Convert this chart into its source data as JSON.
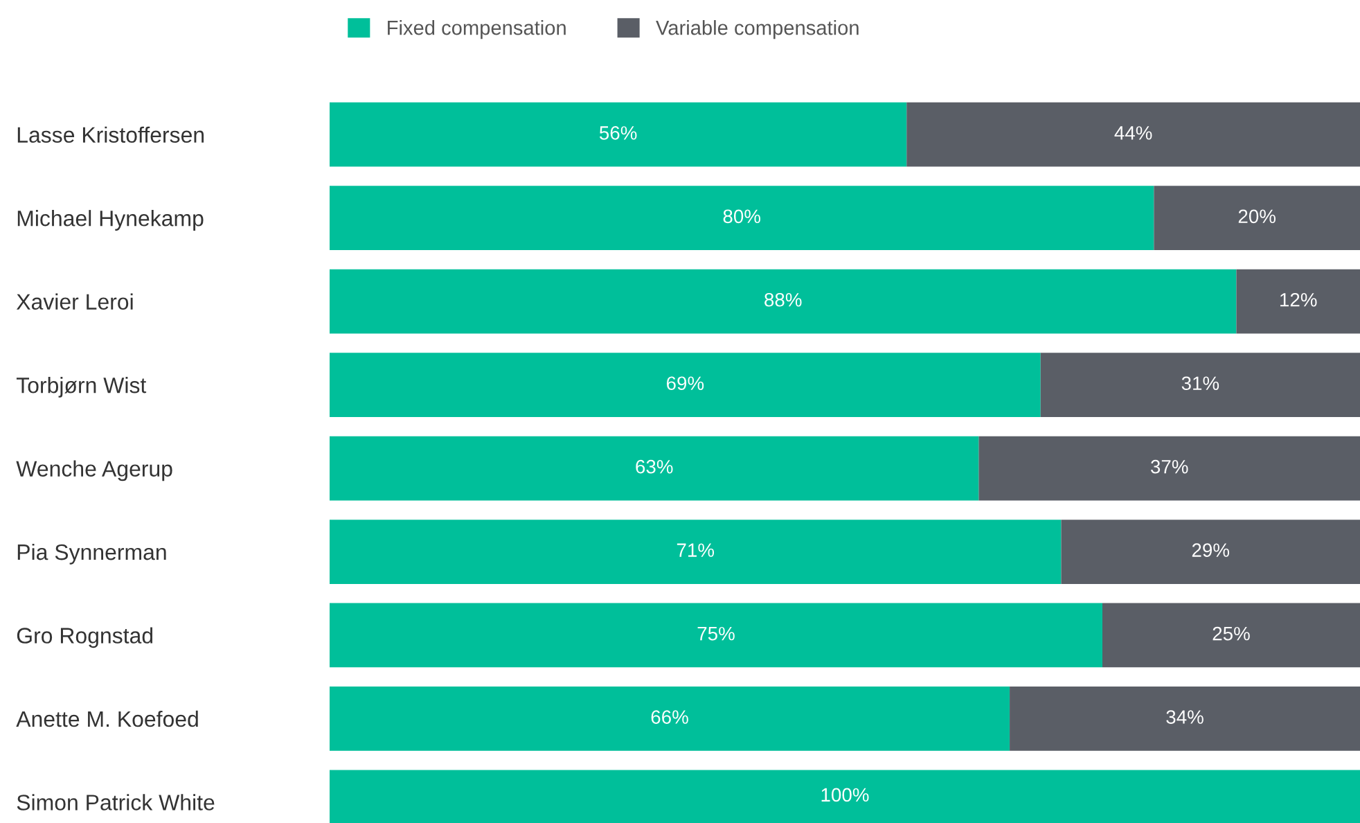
{
  "chart_data": {
    "type": "bar",
    "orientation": "horizontal",
    "stacked": true,
    "legend": "top",
    "tick_labels": "y",
    "grid": false,
    "xlim": [
      0,
      100
    ],
    "categories": [
      "Lasse Kristoffersen",
      "Michael Hynekamp",
      "Xavier Leroi",
      "Torbjørn Wist",
      "Wenche Agerup",
      "Pia Synnerman",
      "Gro Rognstad",
      "Anette M. Koefoed",
      "Simon Patrick White"
    ],
    "series": [
      {
        "name": "Fixed compensation",
        "color": "#00bf9a",
        "values": [
          56,
          80,
          88,
          69,
          63,
          71,
          75,
          66,
          100
        ],
        "value_labels": [
          "56%",
          "80%",
          "88%",
          "69%",
          "63%",
          "71%",
          "75%",
          "66%",
          "100%"
        ]
      },
      {
        "name": "Variable compensation",
        "color": "#5a5e66",
        "values": [
          44,
          20,
          12,
          31,
          37,
          29,
          25,
          34,
          0
        ],
        "value_labels": [
          "44%",
          "20%",
          "12%",
          "31%",
          "37%",
          "29%",
          "25%",
          "34%",
          null
        ]
      }
    ]
  }
}
